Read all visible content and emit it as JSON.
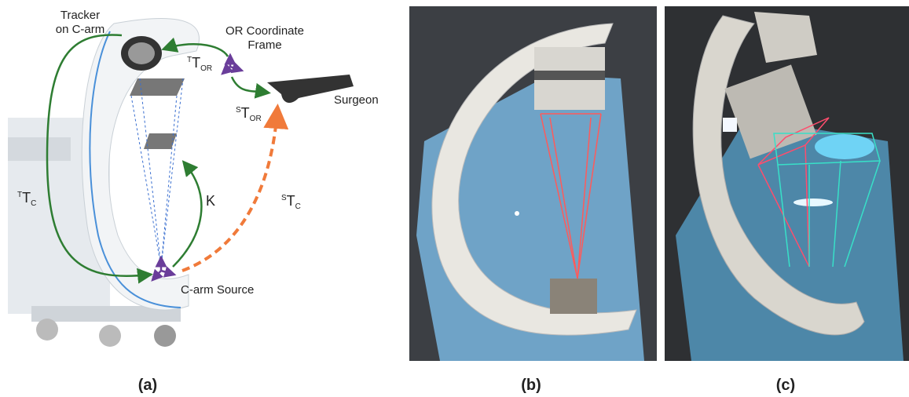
{
  "panels": [
    {
      "caption": "(a)",
      "tracker_label": [
        "Tracker",
        "on C-arm"
      ],
      "frame_label": [
        "OR Coordinate",
        "Frame"
      ],
      "transforms": [
        {
          "sup": "T",
          "base": "T",
          "sub": "OR"
        },
        {
          "sup": "S",
          "base": "T",
          "sub": "OR"
        },
        {
          "sup": "T",
          "base": "T",
          "sub": "C"
        },
        {
          "base": "K"
        },
        {
          "sup": "S",
          "base": "T",
          "sub": "C"
        }
      ],
      "surgeon_label": "Surgeon",
      "source_label": "C-arm Source"
    },
    {
      "caption": "(b)"
    },
    {
      "caption": "(c)"
    }
  ]
}
